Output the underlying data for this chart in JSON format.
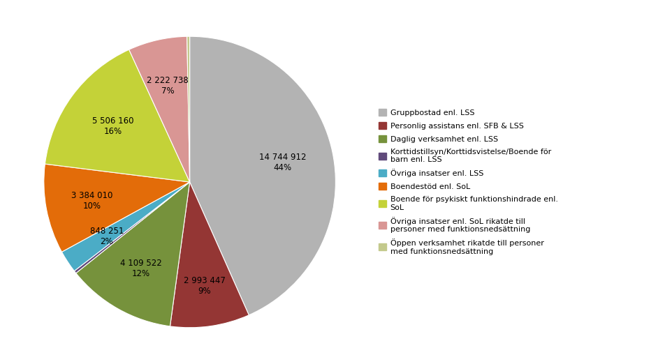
{
  "pie_values": [
    14744912,
    2993447,
    4109522,
    101427,
    848251,
    3384010,
    5506160,
    2222738,
    101427
  ],
  "pie_colors": [
    "#b3b3b3",
    "#943634",
    "#76923c",
    "#604a7b",
    "#4bacc6",
    "#e36c09",
    "#c4d238",
    "#d99694",
    "#c3c98c"
  ],
  "pie_labels_on": [
    "14 744 912\n44%",
    "2 993 447\n9%",
    "4 109 522\n12%",
    "",
    "848 251\n2%",
    "3 384 010\n10%",
    "5 506 160\n16%",
    "2 222 738\n7%",
    ""
  ],
  "legend_labels": [
    "Gruppbostad enl. LSS",
    "Personlig assistans enl. SFB & LSS",
    "Daglig verksamhet enl. LSS",
    "Korttidstillsyn/Korttidsvistelse/Boende för\nbarn enl. LSS",
    "Övriga insatser enl. LSS",
    "Boendestöd enl. SoL",
    "Boende för psykiskt funktionshindrade enl.\nSoL",
    "Övriga insatser enl. SoL rikatde till\npersoner med funktionsnedsättning",
    "Öppen verksamhet rikatde till personer\nmed funktionsnedsättning"
  ],
  "label_radii": [
    0.65,
    0.72,
    0.68,
    0,
    0.68,
    0.68,
    0.65,
    0.68,
    0
  ],
  "figsize": [
    9.53,
    5.22
  ],
  "dpi": 100,
  "startangle": 90,
  "label_fontsize": 8.5,
  "legend_fontsize": 8.0
}
